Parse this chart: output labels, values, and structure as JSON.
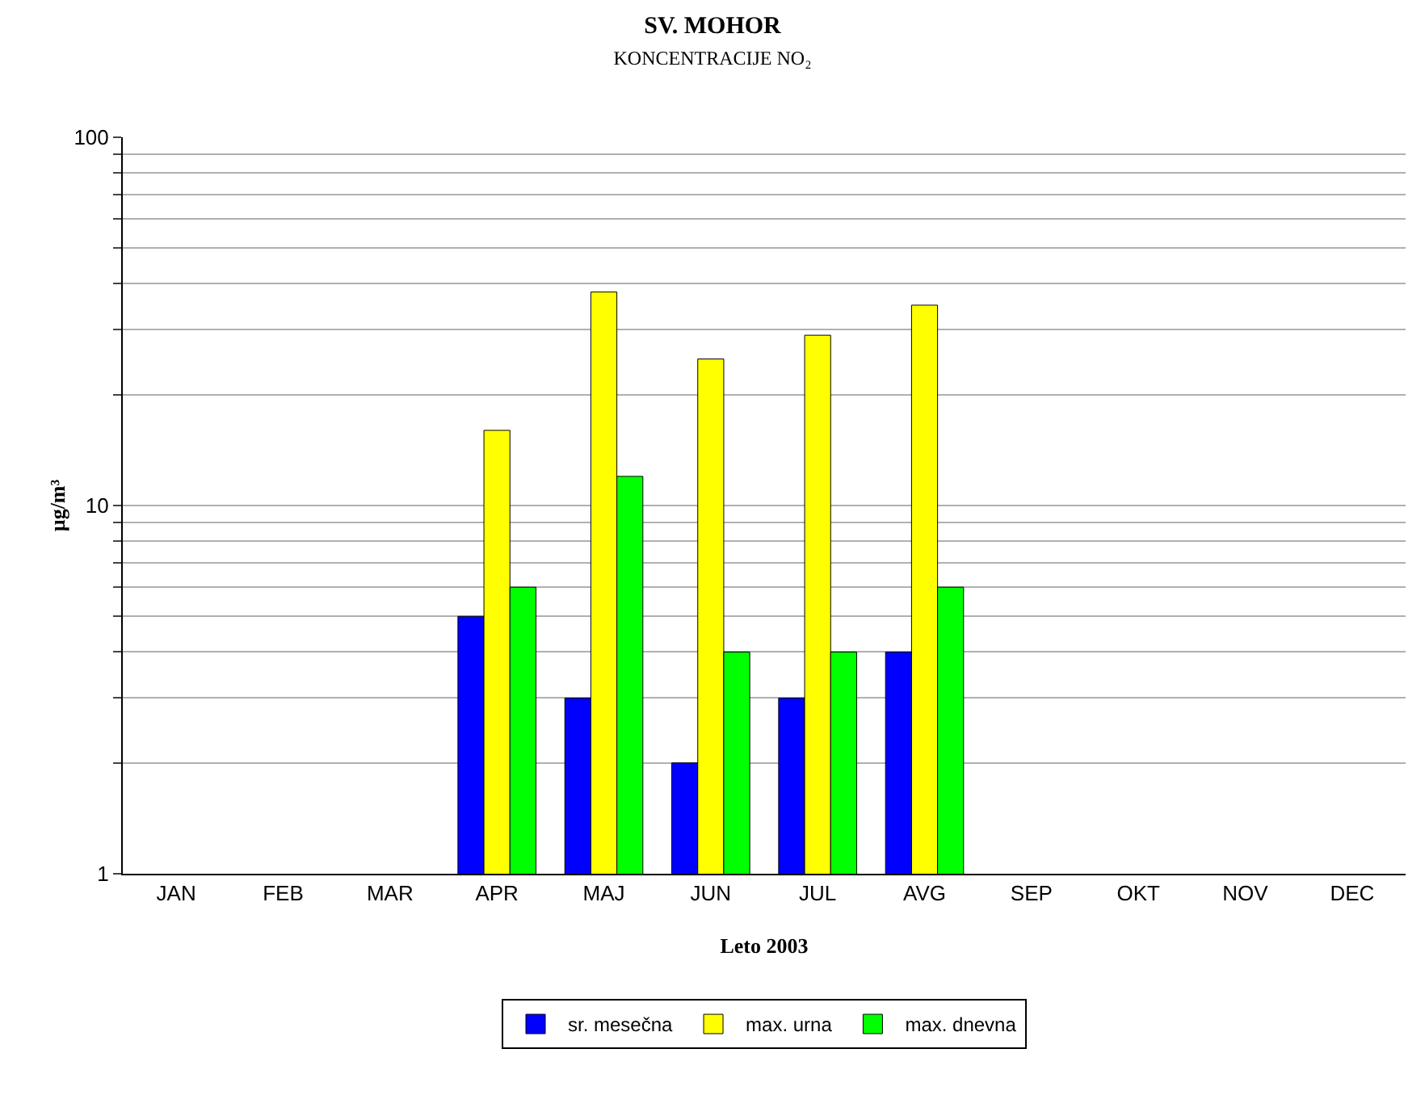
{
  "chart_data": {
    "type": "bar",
    "title": "SV. MOHOR",
    "subtitle": "KONCENTRACIJE NO₂",
    "xlabel": "Leto 2003",
    "ylabel": "µg/m³",
    "categories": [
      "JAN",
      "FEB",
      "MAR",
      "APR",
      "MAJ",
      "JUN",
      "JUL",
      "AVG",
      "SEP",
      "OKT",
      "NOV",
      "DEC"
    ],
    "series": [
      {
        "name": "sr. mesečna",
        "color": "#0000ff",
        "values": [
          null,
          null,
          null,
          5,
          3,
          2,
          3,
          4,
          null,
          null,
          null,
          null
        ]
      },
      {
        "name": "max. urna",
        "color": "#ffff00",
        "values": [
          null,
          null,
          null,
          16,
          38,
          25,
          29,
          35,
          null,
          null,
          null,
          null
        ]
      },
      {
        "name": "max. dnevna",
        "color": "#00ff00",
        "values": [
          null,
          null,
          null,
          6,
          12,
          4,
          4,
          6,
          null,
          null,
          null,
          null
        ]
      }
    ],
    "log": "y",
    "ylim": [
      1,
      100
    ],
    "yticks": [
      1,
      {
        "value": 2,
        "label": null
      },
      {
        "value": 3,
        "label": null
      },
      {
        "value": 4,
        "label": null
      },
      {
        "value": 5,
        "label": null
      },
      {
        "value": 6,
        "label": null
      },
      {
        "value": 7,
        "label": null
      },
      {
        "value": 8,
        "label": null
      },
      {
        "value": 9,
        "label": null
      },
      10,
      {
        "value": 20,
        "label": null
      },
      {
        "value": 30,
        "label": null
      },
      {
        "value": 40,
        "label": null
      },
      {
        "value": 50,
        "label": null
      },
      {
        "value": 60,
        "label": null
      },
      {
        "value": 70,
        "label": null
      },
      {
        "value": 80,
        "label": null
      },
      {
        "value": 90,
        "label": null
      },
      100
    ],
    "grid": "y",
    "legend": "bottom"
  }
}
